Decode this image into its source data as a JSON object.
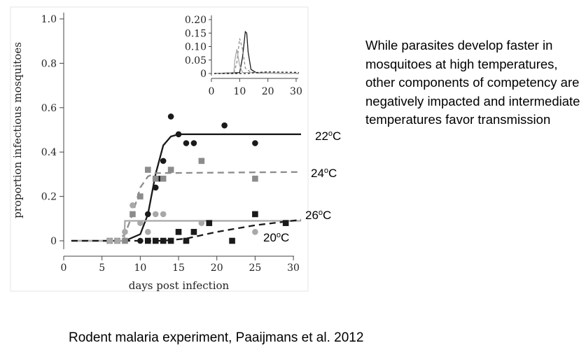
{
  "right_text": "While parasites develop faster in mosquitoes at high temperatures, other components of competency are negatively impacted and intermediate temperatures favor transmission",
  "caption": "Rodent malaria experiment, Paaijmans et al. 2012",
  "temp_labels": [
    {
      "num": "22",
      "sup": "o",
      "unit": "C",
      "series": "22C"
    },
    {
      "num": "24",
      "sup": "o",
      "unit": "C",
      "series": "24C"
    },
    {
      "num": "26",
      "sup": "o",
      "unit": "C",
      "series": "26C"
    },
    {
      "num": "20",
      "sup": "o",
      "unit": "C",
      "series": "20C"
    }
  ],
  "colors": {
    "dark": "#1a1a1a",
    "gray": "#8c8c8c",
    "light_gray": "#a8a8a8"
  },
  "chart_data": [
    {
      "type": "scatter",
      "xlabel": "days post infection",
      "ylabel": "proportion infectious mosquitoes",
      "xlim": [
        0,
        31
      ],
      "ylim": [
        0,
        1.0
      ],
      "xticks": [
        0,
        5,
        10,
        15,
        20,
        25,
        30
      ],
      "yticks": [
        0,
        0.2,
        0.4,
        0.6,
        0.8,
        1.0
      ],
      "ytick_labels": [
        "0",
        "0.2",
        "0.4",
        "0.6",
        "0.8",
        "1.0"
      ],
      "series": [
        {
          "key": "22C",
          "marker": "circle",
          "color": "#1a1a1a",
          "line": "solid",
          "points": [
            [
              10,
              0
            ],
            [
              11,
              0.12
            ],
            [
              12,
              0.24
            ],
            [
              12.5,
              0.28
            ],
            [
              13,
              0.36
            ],
            [
              14,
              0.56
            ],
            [
              15,
              0.48
            ],
            [
              16,
              0.44
            ],
            [
              17,
              0.44
            ],
            [
              21,
              0.52
            ],
            [
              25,
              0.44
            ]
          ],
          "curve": [
            [
              1,
              0
            ],
            [
              8,
              0
            ],
            [
              10,
              0.03
            ],
            [
              11,
              0.12
            ],
            [
              12,
              0.3
            ],
            [
              13,
              0.43
            ],
            [
              14,
              0.47
            ],
            [
              15,
              0.48
            ],
            [
              31,
              0.48
            ]
          ]
        },
        {
          "key": "24C",
          "marker": "square",
          "color": "#8c8c8c",
          "line": "dashed",
          "points": [
            [
              6,
              0
            ],
            [
              7,
              0
            ],
            [
              8,
              0
            ],
            [
              9,
              0.12
            ],
            [
              10,
              0.2
            ],
            [
              11,
              0.32
            ],
            [
              12,
              0.28
            ],
            [
              13,
              0.28
            ],
            [
              14,
              0.32
            ],
            [
              18,
              0.36
            ],
            [
              25,
              0.28
            ]
          ],
          "curve": [
            [
              1,
              0
            ],
            [
              7,
              0
            ],
            [
              8,
              0.03
            ],
            [
              9,
              0.12
            ],
            [
              10,
              0.24
            ],
            [
              11,
              0.29
            ],
            [
              12,
              0.305
            ],
            [
              31,
              0.31
            ]
          ]
        },
        {
          "key": "26C",
          "marker": "circle",
          "color": "#a8a8a8",
          "line": "solid",
          "points": [
            [
              6,
              0
            ],
            [
              7,
              0
            ],
            [
              8,
              0.04
            ],
            [
              9,
              0.16
            ],
            [
              10,
              0.08
            ],
            [
              11,
              0.04
            ],
            [
              12,
              0.12
            ],
            [
              13,
              0.12
            ],
            [
              18,
              0.08
            ],
            [
              25,
              0.04
            ]
          ],
          "curve": [
            [
              1,
              0
            ],
            [
              7.9,
              0
            ],
            [
              8,
              0.09
            ],
            [
              31,
              0.09
            ]
          ]
        },
        {
          "key": "20C",
          "marker": "square",
          "color": "#1a1a1a",
          "line": "dashed",
          "points": [
            [
              11,
              0
            ],
            [
              12,
              0
            ],
            [
              13,
              0
            ],
            [
              14,
              0
            ],
            [
              15,
              0.04
            ],
            [
              16,
              0
            ],
            [
              17,
              0.04
            ],
            [
              19,
              0.08
            ],
            [
              22,
              0
            ],
            [
              25,
              0.12
            ],
            [
              29,
              0.08
            ]
          ],
          "curve": [
            [
              1,
              0
            ],
            [
              13,
              0
            ],
            [
              16,
              0.01
            ],
            [
              20,
              0.04
            ],
            [
              25,
              0.07
            ],
            [
              31,
              0.095
            ]
          ]
        }
      ]
    },
    {
      "type": "line",
      "xlim": [
        0,
        31
      ],
      "ylim": [
        0,
        0.2
      ],
      "xticks": [
        0,
        10,
        20,
        30
      ],
      "yticks": [
        0,
        0.05,
        0.1,
        0.15,
        0.2
      ],
      "ytick_labels": [
        "0",
        "0.05",
        "0.10",
        "0.15",
        "0.20"
      ],
      "series": [
        {
          "key": "22C",
          "color": "#1a1a1a",
          "dash": "",
          "points": [
            [
              1,
              0
            ],
            [
              10,
              0.003
            ],
            [
              11,
              0.06
            ],
            [
              12,
              0.155
            ],
            [
              12.5,
              0.15
            ],
            [
              13,
              0.08
            ],
            [
              14,
              0.015
            ],
            [
              16,
              0.002
            ],
            [
              31,
              0
            ]
          ]
        },
        {
          "key": "24C",
          "color": "#8c8c8c",
          "dash": "4 3",
          "points": [
            [
              1,
              0
            ],
            [
              8,
              0.003
            ],
            [
              9,
              0.04
            ],
            [
              10,
              0.13
            ],
            [
              11,
              0.09
            ],
            [
              12,
              0.02
            ],
            [
              14,
              0.004
            ],
            [
              31,
              0
            ]
          ]
        },
        {
          "key": "26C",
          "color": "#a8a8a8",
          "dash": "",
          "points": [
            [
              1,
              0
            ],
            [
              7.9,
              0
            ],
            [
              8.3,
              0.05
            ],
            [
              9,
              0.09
            ],
            [
              10,
              0.03
            ],
            [
              11,
              0.004
            ],
            [
              31,
              0
            ]
          ]
        },
        {
          "key": "20C",
          "color": "#1a1a1a",
          "dash": "3 3",
          "points": [
            [
              1,
              0
            ],
            [
              13,
              0
            ],
            [
              15,
              0.003
            ],
            [
              20,
              0.006
            ],
            [
              25,
              0.005
            ],
            [
              31,
              0.004
            ]
          ]
        }
      ]
    }
  ]
}
